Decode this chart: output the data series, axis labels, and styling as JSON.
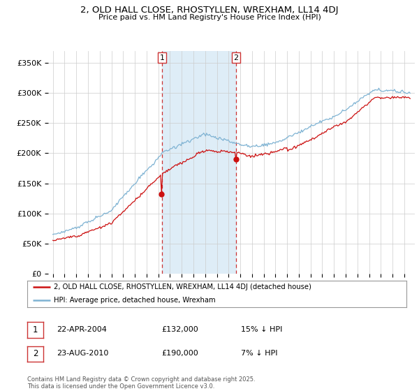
{
  "title": "2, OLD HALL CLOSE, RHOSTYLLEN, WREXHAM, LL14 4DJ",
  "subtitle": "Price paid vs. HM Land Registry's House Price Index (HPI)",
  "ylim": [
    0,
    370000
  ],
  "yticks": [
    0,
    50000,
    100000,
    150000,
    200000,
    250000,
    300000,
    350000
  ],
  "ytick_labels": [
    "£0",
    "£50K",
    "£100K",
    "£150K",
    "£200K",
    "£250K",
    "£300K",
    "£350K"
  ],
  "hpi_color": "#7fb3d3",
  "price_color": "#cc1111",
  "vline_color": "#cc3333",
  "shade_color": "#deedf7",
  "sale1_date_num": 2004.31,
  "sale1_label": "22-APR-2004",
  "sale1_price": 132000,
  "sale1_hpi_pct": "15% ↓ HPI",
  "sale2_date_num": 2010.64,
  "sale2_label": "23-AUG-2010",
  "sale2_price": 190000,
  "sale2_hpi_pct": "7% ↓ HPI",
  "legend_line1": "2, OLD HALL CLOSE, RHOSTYLLEN, WREXHAM, LL14 4DJ (detached house)",
  "legend_line2": "HPI: Average price, detached house, Wrexham",
  "footer": "Contains HM Land Registry data © Crown copyright and database right 2025.\nThis data is licensed under the Open Government Licence v3.0.",
  "bg_color": "#ffffff",
  "grid_color": "#cccccc"
}
